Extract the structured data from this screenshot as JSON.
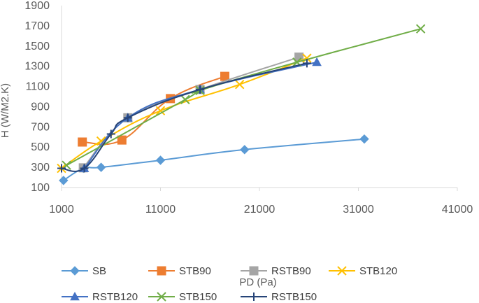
{
  "chart_data": {
    "type": "line",
    "xlabel": "PD (Pa)",
    "ylabel": "H (W/M2.K)",
    "xlim": [
      1000,
      41000
    ],
    "ylim": [
      100,
      1900
    ],
    "xticks": [
      1000,
      11000,
      21000,
      31000,
      41000
    ],
    "yticks": [
      100,
      300,
      500,
      700,
      900,
      1100,
      1300,
      1500,
      1700,
      1900
    ],
    "grid": false,
    "legend_position": "bottom",
    "series": [
      {
        "name": "SB",
        "color": "#5b9bd5",
        "marker": "diamond",
        "x": [
          1200,
          3200,
          5000,
          11000,
          19500,
          31600
        ],
        "y": [
          170,
          290,
          300,
          370,
          475,
          580
        ]
      },
      {
        "name": "STB90",
        "color": "#ed7d31",
        "marker": "square",
        "x": [
          3100,
          7100,
          12000,
          17500
        ],
        "y": [
          550,
          570,
          980,
          1200
        ]
      },
      {
        "name": "RSTB90",
        "color": "#a5a5a5",
        "marker": "square",
        "x": [
          3200,
          7700,
          15000,
          25000
        ],
        "y": [
          295,
          790,
          1070,
          1390
        ]
      },
      {
        "name": "STB120",
        "color": "#ffc000",
        "marker": "x",
        "x": [
          1000,
          5000,
          11000,
          19000,
          25800
        ],
        "y": [
          290,
          560,
          860,
          1120,
          1380
        ]
      },
      {
        "name": "RSTB120",
        "color": "#4472c4",
        "marker": "triangle",
        "x": [
          3300,
          7700,
          15000,
          26800
        ],
        "y": [
          290,
          790,
          1070,
          1340
        ]
      },
      {
        "name": "STB150",
        "color": "#70ad47",
        "marker": "x",
        "x": [
          1500,
          13500,
          15000,
          24800,
          37300
        ],
        "y": [
          320,
          970,
          1060,
          1340,
          1670
        ]
      },
      {
        "name": "RSTB150",
        "color": "#264478",
        "marker": "plus",
        "x": [
          1000,
          3300,
          6000,
          7700,
          15000,
          25800
        ],
        "y": [
          290,
          290,
          630,
          790,
          1070,
          1330
        ]
      }
    ]
  }
}
